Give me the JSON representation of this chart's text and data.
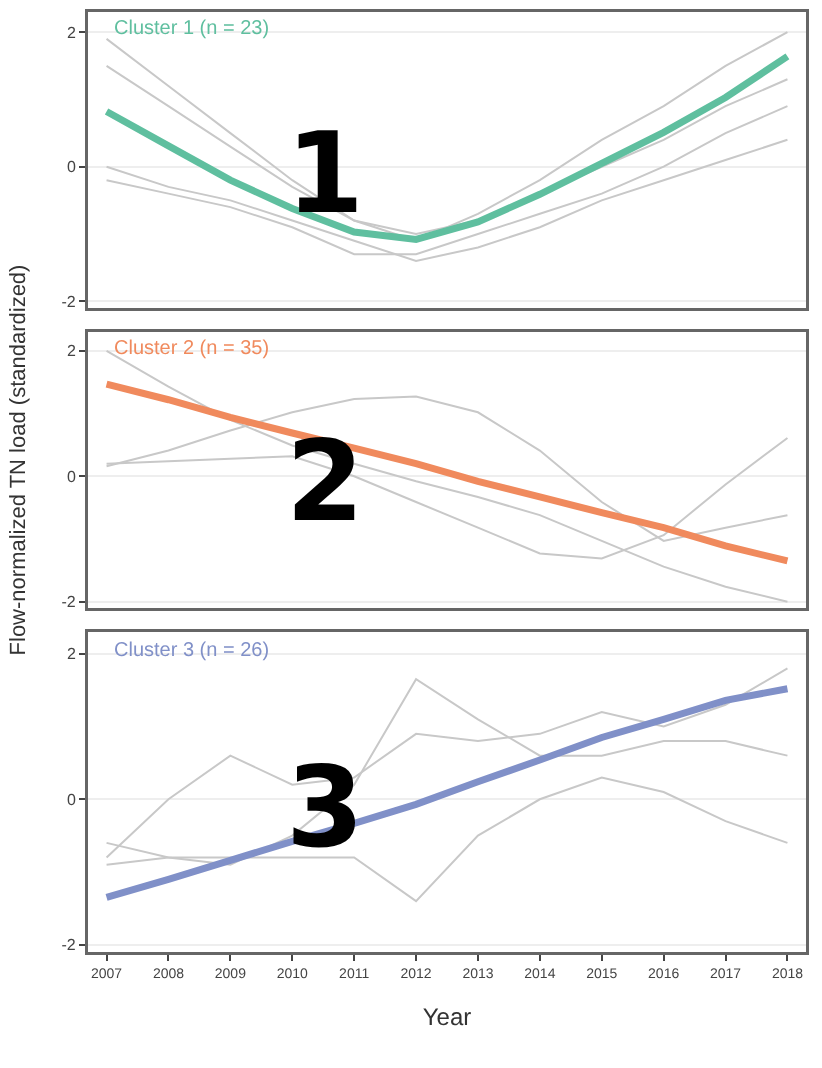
{
  "chart_data": [
    {
      "type": "line",
      "title": "Cluster 1 (n = 23)",
      "annotations": [
        "1"
      ],
      "x": [
        2007,
        2008,
        2009,
        2010,
        2011,
        2012,
        2013,
        2014,
        2015,
        2016,
        2017,
        2018
      ],
      "xlim": [
        2006.7,
        2018.3
      ],
      "xticks": [
        2007,
        2008,
        2009,
        2010,
        2011,
        2012,
        2013,
        2014,
        2015,
        2016,
        2017,
        2018
      ],
      "ylim": [
        -2.1,
        2.3
      ],
      "yticks": [
        -2,
        0,
        2
      ],
      "grid": "y",
      "tick_labels": "y",
      "marker": "none",
      "line_style": "solid",
      "series": [
        {
          "color": "#c8c8c8",
          "values": [
            1.9,
            1.2,
            0.5,
            -0.2,
            -0.8,
            -1.1,
            -0.7,
            -0.2,
            0.4,
            0.9,
            1.5,
            2.0
          ]
        },
        {
          "color": "#c8c8c8",
          "values": [
            1.5,
            0.9,
            0.3,
            -0.3,
            -0.8,
            -1.0,
            -0.8,
            -0.4,
            0.0,
            0.4,
            0.9,
            1.3
          ]
        },
        {
          "color": "#c8c8c8",
          "values": [
            0.0,
            -0.3,
            -0.5,
            -0.8,
            -1.1,
            -1.4,
            -1.2,
            -0.9,
            -0.5,
            -0.2,
            0.1,
            0.4
          ]
        },
        {
          "color": "#c8c8c8",
          "values": [
            -0.2,
            -0.4,
            -0.6,
            -0.9,
            -1.3,
            -1.3,
            -1.0,
            -0.7,
            -0.4,
            0.0,
            0.5,
            0.9
          ]
        },
        {
          "color": "#5fbf9f",
          "values": [
            0.82,
            0.31,
            -0.2,
            -0.62,
            -0.97,
            -1.08,
            -0.82,
            -0.41,
            0.05,
            0.51,
            1.03,
            1.64
          ]
        }
      ]
    },
    {
      "type": "line",
      "title": "Cluster 2 (n = 35)",
      "ylabel": "Flow-normalized TN load (standardized)",
      "annotations": [
        "2"
      ],
      "x": [
        2007,
        2008,
        2009,
        2010,
        2011,
        2012,
        2013,
        2014,
        2015,
        2016,
        2017,
        2018
      ],
      "xlim": [
        2006.7,
        2018.3
      ],
      "xticks": [
        2007,
        2008,
        2009,
        2010,
        2011,
        2012,
        2013,
        2014,
        2015,
        2016,
        2017,
        2018
      ],
      "ylim": [
        -2.1,
        2.3
      ],
      "yticks": [
        -2,
        0,
        2
      ],
      "grid": "y",
      "tick_labels": "y",
      "marker": "none",
      "line_style": "solid",
      "series": [
        {
          "color": "#c8c8c8",
          "values": [
            2.0,
            1.43,
            0.9,
            0.49,
            0.2,
            -0.08,
            -0.33,
            -0.62,
            -1.03,
            -1.44,
            -1.76,
            -2.0
          ]
        },
        {
          "color": "#c8c8c8",
          "values": [
            0.16,
            0.41,
            0.73,
            1.02,
            1.23,
            1.27,
            1.02,
            0.41,
            -0.41,
            -1.03,
            -0.82,
            -0.62
          ]
        },
        {
          "color": "#c8c8c8",
          "values": [
            0.2,
            0.24,
            0.28,
            0.32,
            0.0,
            -0.41,
            -0.82,
            -1.23,
            -1.31,
            -0.94,
            -0.13,
            0.61
          ]
        },
        {
          "color": "#f08a5d",
          "values": [
            1.47,
            1.22,
            0.94,
            0.69,
            0.45,
            0.2,
            -0.08,
            -0.33,
            -0.58,
            -0.82,
            -1.11,
            -1.35
          ]
        }
      ]
    },
    {
      "type": "line",
      "title": "Cluster 3 (n = 26)",
      "xlabel": "Year",
      "annotations": [
        "3"
      ],
      "x": [
        2007,
        2008,
        2009,
        2010,
        2011,
        2012,
        2013,
        2014,
        2015,
        2016,
        2017,
        2018
      ],
      "xlim": [
        2006.7,
        2018.3
      ],
      "xticks": [
        2007,
        2008,
        2009,
        2010,
        2011,
        2012,
        2013,
        2014,
        2015,
        2016,
        2017,
        2018
      ],
      "ylim": [
        -2.1,
        2.3
      ],
      "yticks": [
        -2,
        0,
        2
      ],
      "grid": "y",
      "marker": "none",
      "line_style": "solid",
      "series": [
        {
          "color": "#c8c8c8",
          "values": [
            -0.6,
            -0.8,
            -0.9,
            -0.5,
            0.2,
            1.65,
            1.1,
            0.6,
            0.6,
            0.8,
            0.8,
            0.6
          ]
        },
        {
          "color": "#c8c8c8",
          "values": [
            -0.9,
            -0.8,
            -0.8,
            -0.8,
            -0.8,
            -1.4,
            -0.5,
            0.0,
            0.3,
            0.1,
            -0.3,
            -0.6
          ]
        },
        {
          "color": "#c8c8c8",
          "values": [
            -0.8,
            0.0,
            0.6,
            0.2,
            0.3,
            0.9,
            0.8,
            0.9,
            1.2,
            1.0,
            1.3,
            1.8
          ]
        },
        {
          "color": "#8090c8",
          "values": [
            -1.35,
            -1.1,
            -0.84,
            -0.58,
            -0.33,
            -0.07,
            0.24,
            0.54,
            0.85,
            1.1,
            1.36,
            1.52
          ]
        }
      ]
    }
  ]
}
